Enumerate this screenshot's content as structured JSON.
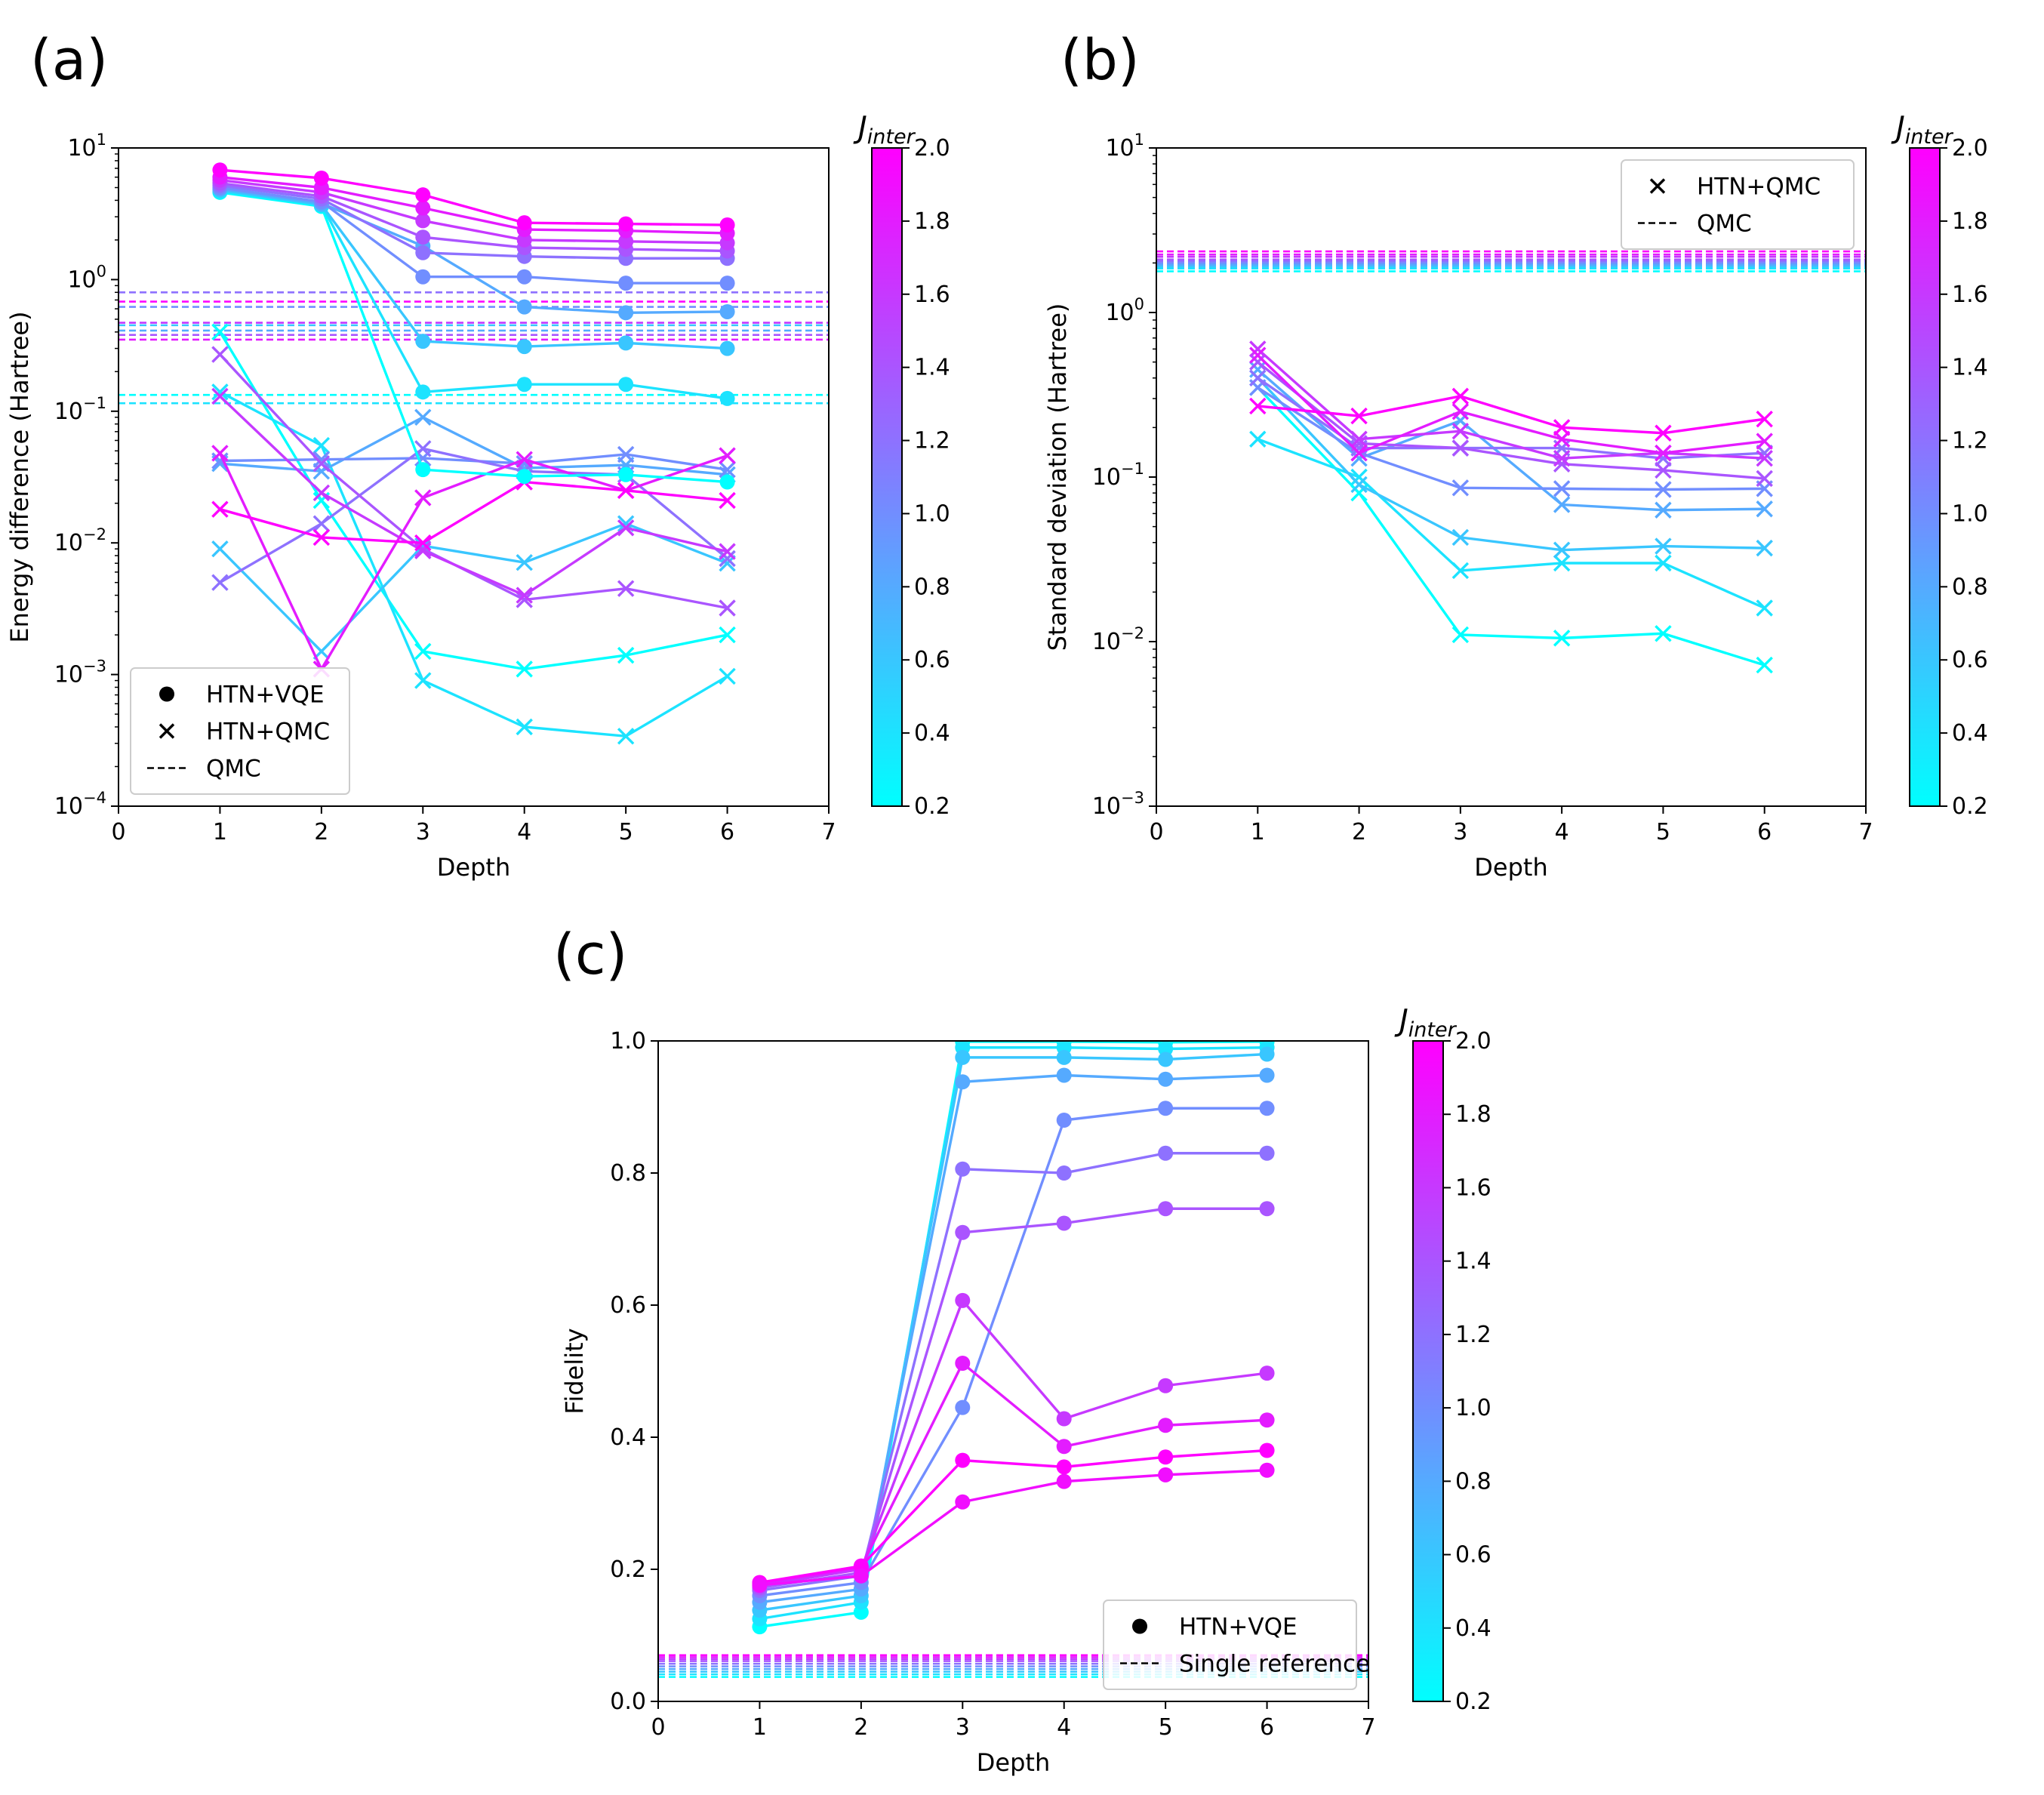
{
  "colorbar": {
    "label_main": "J",
    "label_sub": "inter",
    "min": 0.2,
    "max": 2.0,
    "ticks": [
      "0.2",
      "0.4",
      "0.6",
      "0.8",
      "1.0",
      "1.2",
      "1.4",
      "1.6",
      "1.8",
      "2.0"
    ],
    "color_low": "#00ffff",
    "color_high": "#ff00ff"
  },
  "chart_data": [
    {
      "panel": "(a)",
      "type": "line",
      "xlabel": "Depth",
      "ylabel": "Energy difference (Hartree)",
      "xlim": [
        0,
        7
      ],
      "ylim_log10": [
        -4,
        1
      ],
      "y_scale": "log",
      "x_ticks": [
        "0",
        "1",
        "2",
        "3",
        "4",
        "5",
        "6",
        "7"
      ],
      "y_tick_labels": [
        "10^-4",
        "10^-3",
        "10^-2",
        "10^-1",
        "10^0",
        "10^1"
      ],
      "legend": {
        "position": "lower-left",
        "entries": [
          "HTN+VQE",
          "HTN+QMC",
          "QMC"
        ]
      },
      "x": [
        1,
        2,
        3,
        4,
        5,
        6
      ],
      "series_vqe": [
        {
          "j": 0.2,
          "values": [
            4.6,
            3.6,
            0.036,
            0.032,
            0.033,
            0.029
          ]
        },
        {
          "j": 0.4,
          "values": [
            4.7,
            3.7,
            0.14,
            0.16,
            0.16,
            0.125
          ]
        },
        {
          "j": 0.6,
          "values": [
            4.8,
            3.7,
            0.34,
            0.31,
            0.33,
            0.3
          ]
        },
        {
          "j": 0.8,
          "values": [
            4.9,
            3.8,
            1.8,
            0.62,
            0.56,
            0.57
          ]
        },
        {
          "j": 1.0,
          "values": [
            5.0,
            3.9,
            1.05,
            1.05,
            0.94,
            0.94
          ]
        },
        {
          "j": 1.2,
          "values": [
            5.2,
            4.1,
            1.6,
            1.5,
            1.45,
            1.45
          ]
        },
        {
          "j": 1.4,
          "values": [
            5.4,
            4.3,
            2.1,
            1.75,
            1.7,
            1.65
          ]
        },
        {
          "j": 1.6,
          "values": [
            5.7,
            4.6,
            2.8,
            2.0,
            1.95,
            1.9
          ]
        },
        {
          "j": 1.8,
          "values": [
            6.0,
            5.0,
            3.5,
            2.4,
            2.35,
            2.25
          ]
        },
        {
          "j": 2.0,
          "values": [
            6.8,
            5.9,
            4.4,
            2.7,
            2.65,
            2.6
          ]
        }
      ],
      "series_qmc": [
        {
          "j": 0.2,
          "values": [
            0.4,
            0.021,
            0.0015,
            0.0011,
            0.0014,
            0.002
          ]
        },
        {
          "j": 0.4,
          "values": [
            0.14,
            0.055,
            0.0009,
            0.0004,
            0.00034,
            0.00097
          ]
        },
        {
          "j": 0.6,
          "values": [
            0.009,
            0.0015,
            0.0095,
            0.0071,
            0.014,
            0.007
          ]
        },
        {
          "j": 0.8,
          "values": [
            0.04,
            0.035,
            0.09,
            0.037,
            0.039,
            0.033
          ]
        },
        {
          "j": 1.0,
          "values": [
            0.042,
            0.043,
            0.044,
            0.04,
            0.047,
            0.036
          ]
        },
        {
          "j": 1.2,
          "values": [
            0.005,
            0.014,
            0.052,
            0.035,
            0.033,
            0.0076
          ]
        },
        {
          "j": 1.4,
          "values": [
            0.27,
            0.04,
            0.009,
            0.0037,
            0.0045,
            0.0032
          ]
        },
        {
          "j": 1.6,
          "values": [
            0.13,
            0.024,
            0.0087,
            0.004,
            0.013,
            0.0086
          ]
        },
        {
          "j": 1.8,
          "values": [
            0.048,
            0.0011,
            0.022,
            0.043,
            0.025,
            0.046
          ]
        },
        {
          "j": 2.0,
          "values": [
            0.018,
            0.011,
            0.01,
            0.029,
            0.025,
            0.021
          ]
        }
      ],
      "qmc_reference": [
        {
          "j": 0.2,
          "value": 0.133
        },
        {
          "j": 0.4,
          "value": 0.115
        },
        {
          "j": 0.6,
          "value": 0.45
        },
        {
          "j": 0.8,
          "value": 0.41
        },
        {
          "j": 1.0,
          "value": 0.62
        },
        {
          "j": 1.2,
          "value": 0.8
        },
        {
          "j": 1.4,
          "value": 0.38
        },
        {
          "j": 1.6,
          "value": 0.47
        },
        {
          "j": 1.8,
          "value": 0.35
        },
        {
          "j": 2.0,
          "value": 0.68
        }
      ]
    },
    {
      "panel": "(b)",
      "type": "line",
      "xlabel": "Depth",
      "ylabel": "Standard deviation (Hartree)",
      "xlim": [
        0,
        7
      ],
      "ylim_log10": [
        -3,
        1
      ],
      "y_scale": "log",
      "x_ticks": [
        "0",
        "1",
        "2",
        "3",
        "4",
        "5",
        "6",
        "7"
      ],
      "y_tick_labels": [
        "10^-3",
        "10^-2",
        "10^-1",
        "10^0",
        "10^1"
      ],
      "legend": {
        "position": "top-right",
        "entries": [
          "HTN+QMC",
          "QMC"
        ]
      },
      "x": [
        1,
        2,
        3,
        4,
        5,
        6
      ],
      "series_qmc": [
        {
          "j": 0.2,
          "values": [
            0.35,
            0.08,
            0.011,
            0.0105,
            0.0112,
            0.0072
          ]
        },
        {
          "j": 0.4,
          "values": [
            0.17,
            0.1,
            0.027,
            0.03,
            0.03,
            0.016
          ]
        },
        {
          "j": 0.6,
          "values": [
            0.4,
            0.09,
            0.043,
            0.036,
            0.038,
            0.037
          ]
        },
        {
          "j": 0.8,
          "values": [
            0.45,
            0.13,
            0.22,
            0.068,
            0.063,
            0.064
          ]
        },
        {
          "j": 1.0,
          "values": [
            0.35,
            0.14,
            0.086,
            0.085,
            0.084,
            0.085
          ]
        },
        {
          "j": 1.2,
          "values": [
            0.4,
            0.15,
            0.15,
            0.15,
            0.13,
            0.14
          ]
        },
        {
          "j": 1.4,
          "values": [
            0.5,
            0.16,
            0.15,
            0.12,
            0.11,
            0.098
          ]
        },
        {
          "j": 1.6,
          "values": [
            0.6,
            0.17,
            0.19,
            0.13,
            0.14,
            0.13
          ]
        },
        {
          "j": 1.8,
          "values": [
            0.55,
            0.14,
            0.25,
            0.17,
            0.14,
            0.165
          ]
        },
        {
          "j": 2.0,
          "values": [
            0.27,
            0.235,
            0.31,
            0.2,
            0.185,
            0.225
          ]
        }
      ],
      "qmc_reference": [
        {
          "j": 0.2,
          "value": 1.78
        },
        {
          "j": 0.4,
          "value": 1.85
        },
        {
          "j": 0.6,
          "value": 1.9
        },
        {
          "j": 0.8,
          "value": 1.95
        },
        {
          "j": 1.0,
          "value": 2.0
        },
        {
          "j": 1.2,
          "value": 2.05
        },
        {
          "j": 1.4,
          "value": 2.1
        },
        {
          "j": 1.6,
          "value": 2.18
        },
        {
          "j": 1.8,
          "value": 2.25
        },
        {
          "j": 2.0,
          "value": 2.35
        }
      ]
    },
    {
      "panel": "(c)",
      "type": "line",
      "xlabel": "Depth",
      "ylabel": "Fidelity",
      "xlim": [
        0,
        7
      ],
      "ylim": [
        0,
        1
      ],
      "y_scale": "linear",
      "x_ticks": [
        "0",
        "1",
        "2",
        "3",
        "4",
        "5",
        "6",
        "7"
      ],
      "y_ticks": [
        "0.0",
        "0.2",
        "0.4",
        "0.6",
        "0.8",
        "1.0"
      ],
      "legend": {
        "position": "lower-right",
        "entries": [
          "HTN+VQE",
          "Single reference"
        ]
      },
      "x": [
        1,
        2,
        3,
        4,
        5,
        6
      ],
      "series_vqe": [
        {
          "j": 0.2,
          "values": [
            0.113,
            0.135,
            0.999,
            0.999,
            0.998,
            0.999
          ]
        },
        {
          "j": 0.4,
          "values": [
            0.125,
            0.15,
            0.99,
            0.99,
            0.988,
            0.99
          ]
        },
        {
          "j": 0.6,
          "values": [
            0.138,
            0.16,
            0.975,
            0.975,
            0.972,
            0.98
          ]
        },
        {
          "j": 0.8,
          "values": [
            0.15,
            0.17,
            0.938,
            0.948,
            0.942,
            0.948
          ]
        },
        {
          "j": 1.0,
          "values": [
            0.16,
            0.18,
            0.445,
            0.88,
            0.898,
            0.898
          ]
        },
        {
          "j": 1.2,
          "values": [
            0.168,
            0.19,
            0.806,
            0.8,
            0.83,
            0.83
          ]
        },
        {
          "j": 1.4,
          "values": [
            0.172,
            0.195,
            0.71,
            0.724,
            0.746,
            0.746
          ]
        },
        {
          "j": 1.6,
          "values": [
            0.175,
            0.2,
            0.607,
            0.428,
            0.478,
            0.497
          ]
        },
        {
          "j": 1.8,
          "values": [
            0.178,
            0.203,
            0.512,
            0.386,
            0.418,
            0.426
          ]
        },
        {
          "j": 2.0,
          "values": [
            0.18,
            0.205,
            0.365,
            0.355,
            0.37,
            0.38
          ]
        },
        {
          "j": 1.9,
          "values": [
            0.176,
            0.19,
            0.302,
            0.333,
            0.343,
            0.35
          ]
        }
      ],
      "single_reference": [
        {
          "j": 0.2,
          "value": 0.037
        },
        {
          "j": 0.4,
          "value": 0.041
        },
        {
          "j": 0.6,
          "value": 0.045
        },
        {
          "j": 0.8,
          "value": 0.049
        },
        {
          "j": 1.0,
          "value": 0.053
        },
        {
          "j": 1.2,
          "value": 0.057
        },
        {
          "j": 1.4,
          "value": 0.061
        },
        {
          "j": 1.6,
          "value": 0.064
        },
        {
          "j": 1.8,
          "value": 0.067
        },
        {
          "j": 2.0,
          "value": 0.07
        }
      ]
    }
  ]
}
